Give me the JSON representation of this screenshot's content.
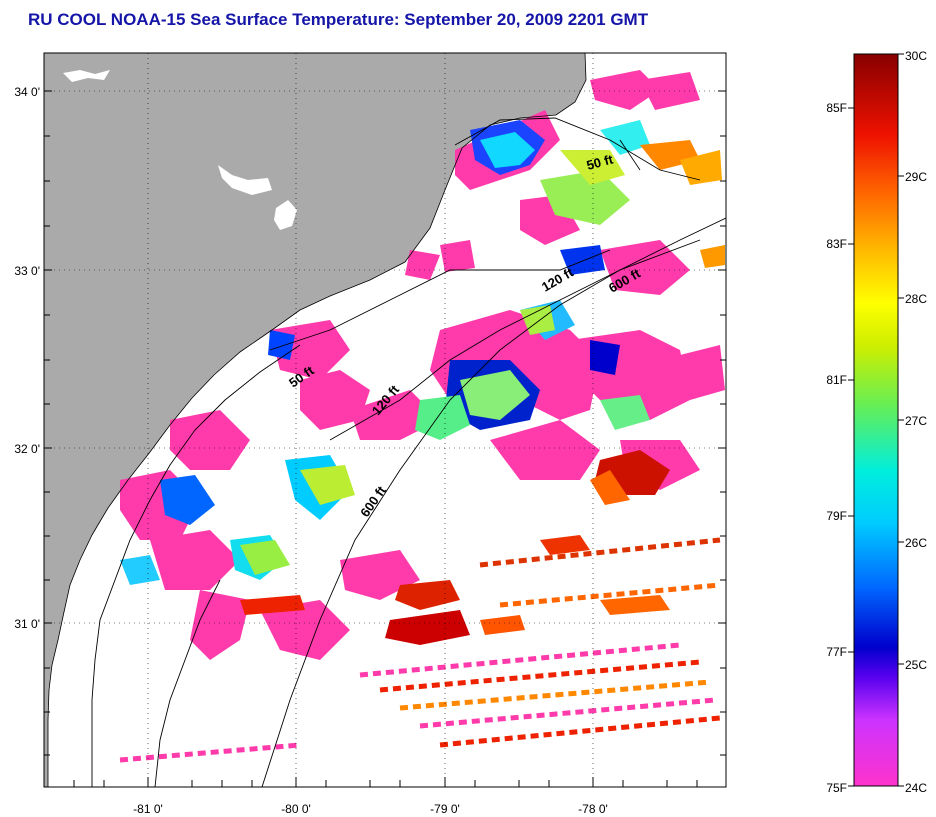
{
  "title": "RU COOL  NOAA-15  Sea Surface Temperature:  September 20, 2009 2201 GMT",
  "map": {
    "lon_labels": [
      "-81 0'",
      "-80 0'",
      "-79 0'",
      "-78 0'"
    ],
    "lat_labels": [
      "34 0'",
      "33 0'",
      "32 0'",
      "31 0'"
    ],
    "contour_labels": {
      "ft50_north": "50 ft",
      "ft50_south": "50 ft",
      "ft120_north": "120 ft",
      "ft120_south": "120 ft",
      "ft600_north": "600 ft",
      "ft600_south": "600 ft"
    },
    "colors": {
      "land": "#aaaaaa",
      "water_nodata": "#ffffff",
      "grid": "#000000"
    }
  },
  "colorbar": {
    "fahrenheit_labels": [
      "85F",
      "83F",
      "81F",
      "79F",
      "77F",
      "75F"
    ],
    "celsius_labels": [
      "30C",
      "29C",
      "28C",
      "27C",
      "26C",
      "25C",
      "24C"
    ],
    "gradient": [
      "#ff33cc",
      "#cc33ff",
      "#6600ff",
      "#0000cc",
      "#0055ff",
      "#00aaff",
      "#00eeff",
      "#33ee99",
      "#99ee33",
      "#eeee00",
      "#ffcc00",
      "#ff8800",
      "#ff4400",
      "#dd0000",
      "#990000"
    ]
  }
}
